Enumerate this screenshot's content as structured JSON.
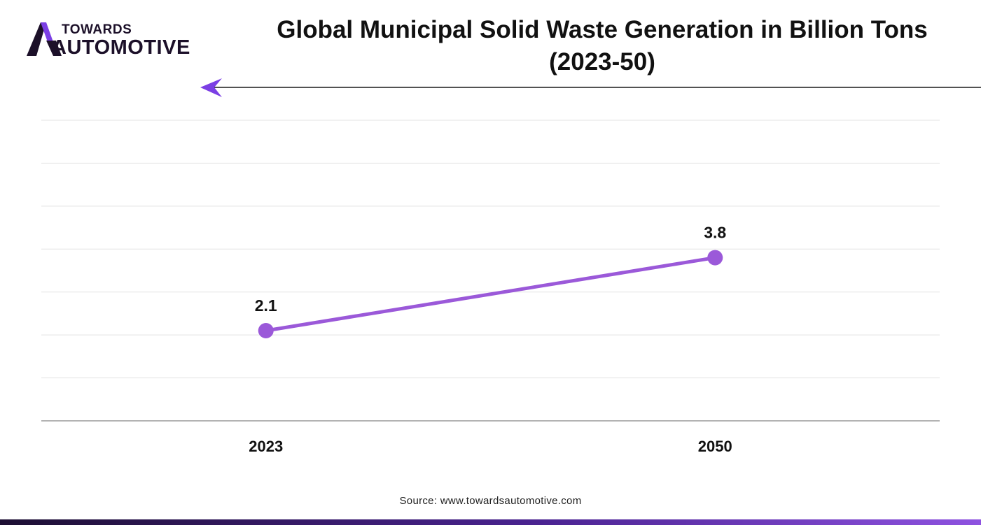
{
  "logo": {
    "line1": "TOWARDS",
    "line2": "AUTOMOTIVE",
    "dark_color": "#1c1029",
    "accent_color": "#7b3fe4"
  },
  "chart_data": {
    "type": "line",
    "title": "Global Municipal Solid Waste Generation in Billion Tons (2023-50)",
    "title_line1": "Global Municipal Solid Waste Generation in Billion Tons",
    "title_line2": "(2023-50)",
    "categories": [
      "2023",
      "2050"
    ],
    "series": [
      {
        "name": "Municipal Solid Waste Generation (Billion Tons)",
        "values": [
          2.1,
          3.8
        ],
        "labels": [
          "2.1",
          "3.8"
        ],
        "color": "#9b59d9"
      }
    ],
    "xlabel": "",
    "ylabel": "",
    "ylim": [
      0,
      7
    ],
    "grid": true,
    "legend": "none"
  },
  "colors": {
    "grid": "#e3e3e3",
    "axis": "#9a9a9a",
    "arrow": "#7b3fe4"
  },
  "source": "Source: www.towardsautomotive.com"
}
